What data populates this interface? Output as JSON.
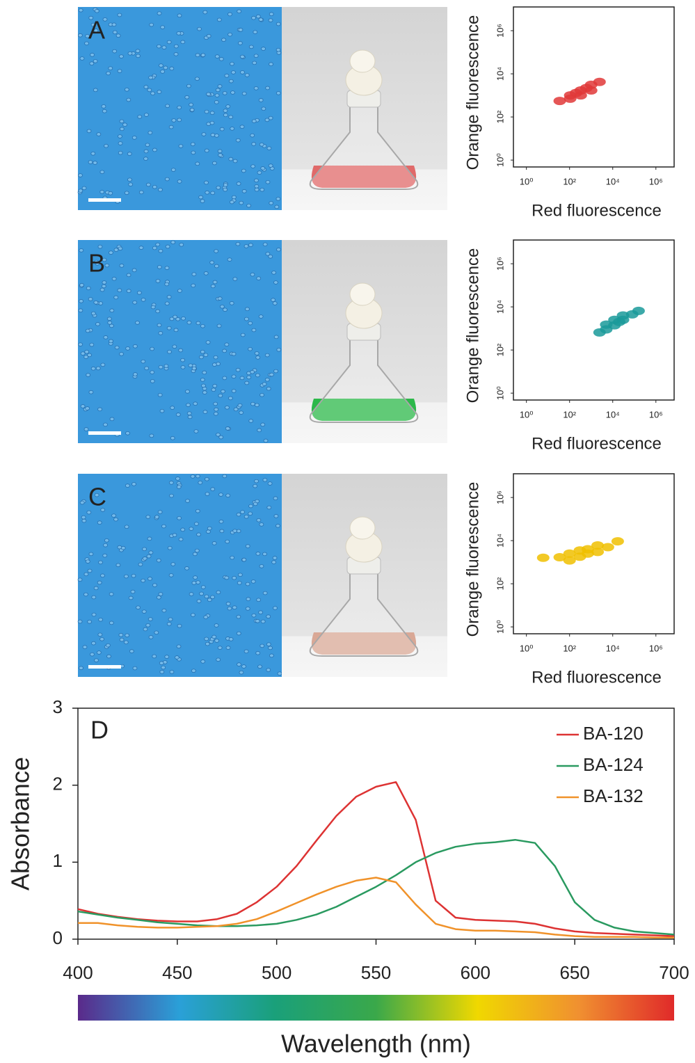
{
  "chart_data": [
    {
      "type": "scatter",
      "panel": "A",
      "xlabel": "Red fluorescence",
      "ylabel": "Orange fluorescence",
      "log_scale": true,
      "color": "#e03838",
      "xlim": [
        0.25,
        7000000
      ],
      "ylim": [
        0.48,
        12600000
      ],
      "xticks": [
        {
          "value": 1,
          "label": "10⁰"
        },
        {
          "value": 100,
          "label": "10²"
        },
        {
          "value": 10000,
          "label": "10⁴"
        },
        {
          "value": 1000000,
          "label": "10⁶"
        }
      ],
      "yticks": [
        {
          "value": 1,
          "label": "10⁰"
        },
        {
          "value": 100,
          "label": "10²"
        },
        {
          "value": 10000,
          "label": "10⁴"
        },
        {
          "value": 1000000,
          "label": "10⁶"
        }
      ],
      "x": [
        35,
        107,
        107,
        200,
        330,
        330,
        600,
        1000,
        1000,
        2450
      ],
      "y": [
        550,
        700,
        1000,
        1300,
        1000,
        1700,
        2200,
        1700,
        3100,
        4200
      ]
    },
    {
      "type": "scatter",
      "panel": "B",
      "xlabel": "Red fluorescence",
      "ylabel": "Orange fluorescence",
      "log_scale": true,
      "color": "#1a9a9a",
      "xlim": [
        0.25,
        7000000
      ],
      "ylim": [
        0.48,
        12600000
      ],
      "xticks": [
        {
          "value": 1,
          "label": "10⁰"
        },
        {
          "value": 100,
          "label": "10²"
        },
        {
          "value": 10000,
          "label": "10⁴"
        },
        {
          "value": 1000000,
          "label": "10⁶"
        }
      ],
      "yticks": [
        {
          "value": 1,
          "label": "10⁰"
        },
        {
          "value": 100,
          "label": "10²"
        },
        {
          "value": 10000,
          "label": "10⁴"
        },
        {
          "value": 1000000,
          "label": "10⁶"
        }
      ],
      "x": [
        2450,
        5000,
        5000,
        12000,
        12000,
        20000,
        30000,
        30000,
        80000,
        158000
      ],
      "y": [
        650,
        900,
        1500,
        1400,
        2500,
        2000,
        2500,
        4000,
        4500,
        6500
      ]
    },
    {
      "type": "scatter",
      "panel": "C",
      "xlabel": "Red fluorescence",
      "ylabel": "Orange fluorescence",
      "log_scale": true,
      "color": "#f0c000",
      "xlim": [
        0.25,
        7000000
      ],
      "ylim": [
        0.48,
        12600000
      ],
      "xticks": [
        {
          "value": 1,
          "label": "10⁰"
        },
        {
          "value": 100,
          "label": "10²"
        },
        {
          "value": 10000,
          "label": "10⁴"
        },
        {
          "value": 1000000,
          "label": "10⁶"
        }
      ],
      "yticks": [
        {
          "value": 1,
          "label": "10⁰"
        },
        {
          "value": 100,
          "label": "10²"
        },
        {
          "value": 10000,
          "label": "10⁴"
        },
        {
          "value": 1000000,
          "label": "10⁶"
        }
      ],
      "x": [
        6,
        35,
        100,
        100,
        300,
        300,
        700,
        700,
        2000,
        2000,
        6000,
        17000
      ],
      "y": [
        1600,
        1700,
        1200,
        2500,
        1800,
        3500,
        2500,
        4000,
        3000,
        6000,
        5000,
        9300
      ]
    },
    {
      "type": "line",
      "panel": "D",
      "xlabel": "Wavelength (nm)",
      "ylabel": "Absorbance",
      "legend": "upper right",
      "xlim": [
        400,
        700
      ],
      "ylim": [
        0,
        3
      ],
      "xticks": [
        400,
        450,
        500,
        550,
        600,
        650,
        700
      ],
      "yticks": [
        0,
        1,
        2,
        3
      ],
      "x": [
        400,
        410,
        420,
        430,
        440,
        450,
        460,
        470,
        480,
        490,
        500,
        510,
        520,
        530,
        540,
        550,
        560,
        570,
        580,
        590,
        600,
        610,
        620,
        630,
        640,
        650,
        660,
        670,
        680,
        690,
        700
      ],
      "series": [
        {
          "name": "BA-120",
          "color": "#dd3333",
          "values": [
            0.39,
            0.33,
            0.29,
            0.26,
            0.24,
            0.23,
            0.23,
            0.26,
            0.33,
            0.48,
            0.68,
            0.95,
            1.28,
            1.6,
            1.85,
            1.98,
            2.04,
            1.55,
            0.5,
            0.28,
            0.25,
            0.24,
            0.23,
            0.2,
            0.14,
            0.1,
            0.08,
            0.07,
            0.06,
            0.05,
            0.04
          ]
        },
        {
          "name": "BA-124",
          "color": "#2a9a60",
          "values": [
            0.36,
            0.32,
            0.28,
            0.25,
            0.22,
            0.2,
            0.18,
            0.17,
            0.17,
            0.18,
            0.2,
            0.25,
            0.32,
            0.42,
            0.55,
            0.68,
            0.83,
            1.0,
            1.12,
            1.2,
            1.24,
            1.26,
            1.29,
            1.25,
            0.95,
            0.48,
            0.25,
            0.15,
            0.1,
            0.08,
            0.06
          ]
        },
        {
          "name": "BA-132",
          "color": "#f0922a",
          "values": [
            0.21,
            0.21,
            0.18,
            0.16,
            0.15,
            0.15,
            0.16,
            0.17,
            0.2,
            0.26,
            0.36,
            0.47,
            0.58,
            0.68,
            0.76,
            0.8,
            0.74,
            0.45,
            0.2,
            0.13,
            0.11,
            0.11,
            0.1,
            0.09,
            0.06,
            0.04,
            0.03,
            0.03,
            0.03,
            0.02,
            0.02
          ]
        }
      ]
    }
  ]
}
